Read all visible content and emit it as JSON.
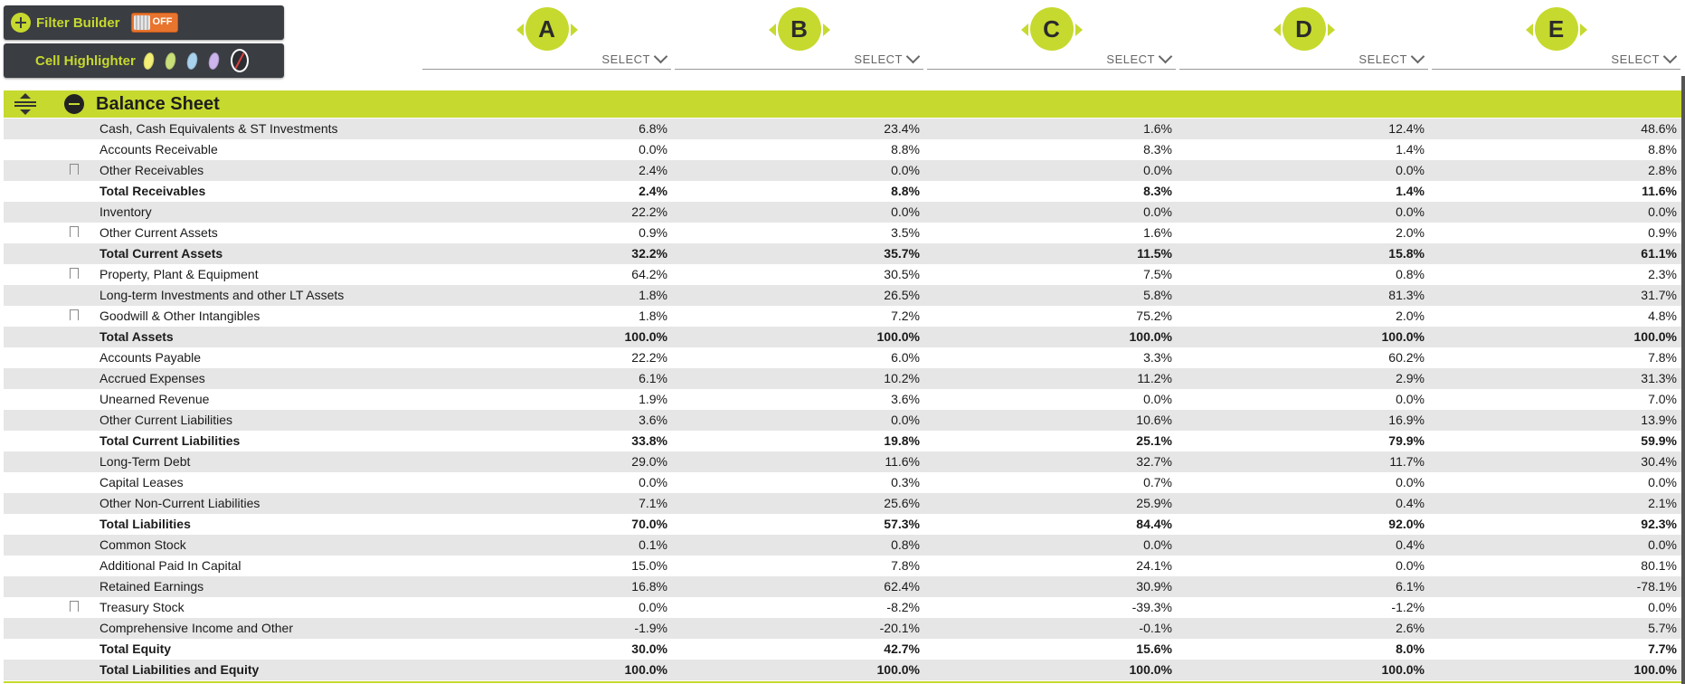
{
  "toolbar": {
    "filter_builder_label": "Filter Builder",
    "filter_toggle_state": "OFF",
    "cell_highlighter_label": "Cell Highlighter",
    "highlight_colors": [
      "#f2ee76",
      "#c9e07a",
      "#a9d2ee",
      "#cdb4ec"
    ]
  },
  "columns": [
    {
      "letter": "A",
      "select_label": "SELECT"
    },
    {
      "letter": "B",
      "select_label": "SELECT"
    },
    {
      "letter": "C",
      "select_label": "SELECT"
    },
    {
      "letter": "D",
      "select_label": "SELECT"
    },
    {
      "letter": "E",
      "select_label": "SELECT"
    }
  ],
  "section": {
    "title": "Balance Sheet"
  },
  "rows": [
    {
      "label": "Cash, Cash Equivalents & ST Investments",
      "bookmark": false,
      "total": false,
      "values": [
        "6.8%",
        "23.4%",
        "1.6%",
        "12.4%",
        "48.6%"
      ]
    },
    {
      "label": "Accounts Receivable",
      "bookmark": false,
      "total": false,
      "values": [
        "0.0%",
        "8.8%",
        "8.3%",
        "1.4%",
        "8.8%"
      ]
    },
    {
      "label": "Other Receivables",
      "bookmark": true,
      "total": false,
      "values": [
        "2.4%",
        "0.0%",
        "0.0%",
        "0.0%",
        "2.8%"
      ]
    },
    {
      "label": "Total Receivables",
      "bookmark": false,
      "total": true,
      "values": [
        "2.4%",
        "8.8%",
        "8.3%",
        "1.4%",
        "11.6%"
      ]
    },
    {
      "label": "Inventory",
      "bookmark": false,
      "total": false,
      "values": [
        "22.2%",
        "0.0%",
        "0.0%",
        "0.0%",
        "0.0%"
      ]
    },
    {
      "label": "Other Current Assets",
      "bookmark": true,
      "total": false,
      "values": [
        "0.9%",
        "3.5%",
        "1.6%",
        "2.0%",
        "0.9%"
      ]
    },
    {
      "label": "Total Current Assets",
      "bookmark": false,
      "total": true,
      "values": [
        "32.2%",
        "35.7%",
        "11.5%",
        "15.8%",
        "61.1%"
      ]
    },
    {
      "label": "Property, Plant & Equipment",
      "bookmark": true,
      "total": false,
      "values": [
        "64.2%",
        "30.5%",
        "7.5%",
        "0.8%",
        "2.3%"
      ]
    },
    {
      "label": "Long-term Investments and other LT Assets",
      "bookmark": false,
      "total": false,
      "values": [
        "1.8%",
        "26.5%",
        "5.8%",
        "81.3%",
        "31.7%"
      ]
    },
    {
      "label": "Goodwill & Other Intangibles",
      "bookmark": true,
      "total": false,
      "values": [
        "1.8%",
        "7.2%",
        "75.2%",
        "2.0%",
        "4.8%"
      ]
    },
    {
      "label": "Total Assets",
      "bookmark": false,
      "total": true,
      "values": [
        "100.0%",
        "100.0%",
        "100.0%",
        "100.0%",
        "100.0%"
      ]
    },
    {
      "label": "Accounts Payable",
      "bookmark": false,
      "total": false,
      "values": [
        "22.2%",
        "6.0%",
        "3.3%",
        "60.2%",
        "7.8%"
      ]
    },
    {
      "label": "Accrued Expenses",
      "bookmark": false,
      "total": false,
      "values": [
        "6.1%",
        "10.2%",
        "11.2%",
        "2.9%",
        "31.3%"
      ]
    },
    {
      "label": "Unearned Revenue",
      "bookmark": false,
      "total": false,
      "values": [
        "1.9%",
        "3.6%",
        "0.0%",
        "0.0%",
        "7.0%"
      ]
    },
    {
      "label": "Other Current Liabilities",
      "bookmark": false,
      "total": false,
      "values": [
        "3.6%",
        "0.0%",
        "10.6%",
        "16.9%",
        "13.9%"
      ]
    },
    {
      "label": "Total Current Liabilities",
      "bookmark": false,
      "total": true,
      "values": [
        "33.8%",
        "19.8%",
        "25.1%",
        "79.9%",
        "59.9%"
      ]
    },
    {
      "label": "Long-Term Debt",
      "bookmark": false,
      "total": false,
      "values": [
        "29.0%",
        "11.6%",
        "32.7%",
        "11.7%",
        "30.4%"
      ]
    },
    {
      "label": "Capital Leases",
      "bookmark": false,
      "total": false,
      "values": [
        "0.0%",
        "0.3%",
        "0.7%",
        "0.0%",
        "0.0%"
      ]
    },
    {
      "label": "Other Non-Current Liabilities",
      "bookmark": false,
      "total": false,
      "values": [
        "7.1%",
        "25.6%",
        "25.9%",
        "0.4%",
        "2.1%"
      ]
    },
    {
      "label": "Total Liabilities",
      "bookmark": false,
      "total": true,
      "values": [
        "70.0%",
        "57.3%",
        "84.4%",
        "92.0%",
        "92.3%"
      ]
    },
    {
      "label": "Common Stock",
      "bookmark": false,
      "total": false,
      "values": [
        "0.1%",
        "0.8%",
        "0.0%",
        "0.4%",
        "0.0%"
      ]
    },
    {
      "label": "Additional Paid In Capital",
      "bookmark": false,
      "total": false,
      "values": [
        "15.0%",
        "7.8%",
        "24.1%",
        "0.0%",
        "80.1%"
      ]
    },
    {
      "label": "Retained Earnings",
      "bookmark": false,
      "total": false,
      "values": [
        "16.8%",
        "62.4%",
        "30.9%",
        "6.1%",
        "-78.1%"
      ]
    },
    {
      "label": "Treasury Stock",
      "bookmark": true,
      "total": false,
      "values": [
        "0.0%",
        "-8.2%",
        "-39.3%",
        "-1.2%",
        "0.0%"
      ]
    },
    {
      "label": "Comprehensive Income and Other",
      "bookmark": false,
      "total": false,
      "values": [
        "-1.9%",
        "-20.1%",
        "-0.1%",
        "2.6%",
        "5.7%"
      ]
    },
    {
      "label": "Total Equity",
      "bookmark": false,
      "total": true,
      "values": [
        "30.0%",
        "42.7%",
        "15.6%",
        "8.0%",
        "7.7%"
      ]
    },
    {
      "label": "Total Liabilities and Equity",
      "bookmark": false,
      "total": true,
      "values": [
        "100.0%",
        "100.0%",
        "100.0%",
        "100.0%",
        "100.0%"
      ]
    }
  ]
}
